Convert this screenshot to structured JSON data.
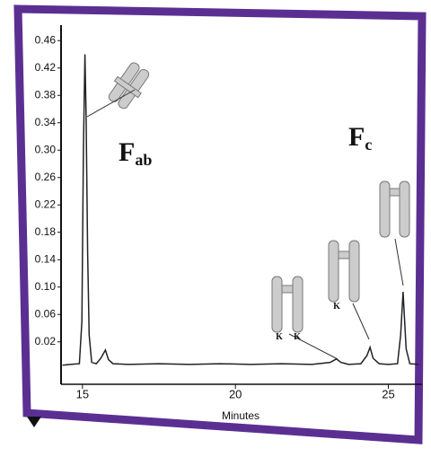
{
  "chart_data": {
    "type": "line",
    "x_label": "Minutes",
    "x": [
      14.35,
      14.6,
      14.9,
      14.98,
      15.03,
      15.08,
      15.12,
      15.17,
      15.22,
      15.3,
      15.45,
      15.6,
      15.75,
      15.85,
      16.0,
      16.5,
      17.5,
      18.5,
      19.5,
      20.5,
      21.5,
      22.5,
      23.1,
      23.3,
      23.45,
      23.7,
      24.1,
      24.3,
      24.4,
      24.5,
      24.7,
      25.0,
      25.3,
      25.4,
      25.48,
      25.58,
      25.7,
      26.0
    ],
    "values": [
      -0.014,
      -0.013,
      -0.012,
      0.05,
      0.3,
      0.44,
      0.35,
      0.15,
      0.03,
      -0.01,
      -0.012,
      -0.004,
      0.008,
      -0.006,
      -0.012,
      -0.013,
      -0.012,
      -0.013,
      -0.012,
      -0.013,
      -0.012,
      -0.013,
      -0.01,
      -0.005,
      -0.01,
      -0.013,
      -0.012,
      0.0,
      0.012,
      -0.004,
      -0.012,
      -0.013,
      -0.012,
      0.03,
      0.093,
      0.01,
      -0.012,
      -0.013
    ],
    "color": "#222222",
    "xlim": [
      14.3,
      26.1
    ],
    "xticks": [
      15,
      20,
      25
    ],
    "ylim": [
      -0.042,
      0.48
    ],
    "yticks": [
      {
        "value": 0.02,
        "label": "0.02"
      },
      {
        "value": 0.06,
        "label": "0.06"
      },
      {
        "value": 0.1,
        "label": "0.10"
      },
      {
        "value": 0.14,
        "label": "0.14"
      },
      {
        "value": 0.18,
        "label": "0.18"
      },
      {
        "value": 0.22,
        "label": "0.22"
      },
      {
        "value": 0.26,
        "label": "0.26"
      },
      {
        "value": 0.3,
        "label": "0.30"
      },
      {
        "value": 0.34,
        "label": "0.34"
      },
      {
        "value": 0.38,
        "label": "0.38"
      },
      {
        "value": 0.42,
        "label": "0.42"
      },
      {
        "value": 0.46,
        "label": "0.46"
      }
    ],
    "annotations": [
      {
        "text": "F",
        "sub": "ab"
      },
      {
        "text": "F",
        "sub": "c"
      },
      {
        "text": "K"
      },
      {
        "text": "K"
      },
      {
        "text": "K"
      }
    ]
  }
}
